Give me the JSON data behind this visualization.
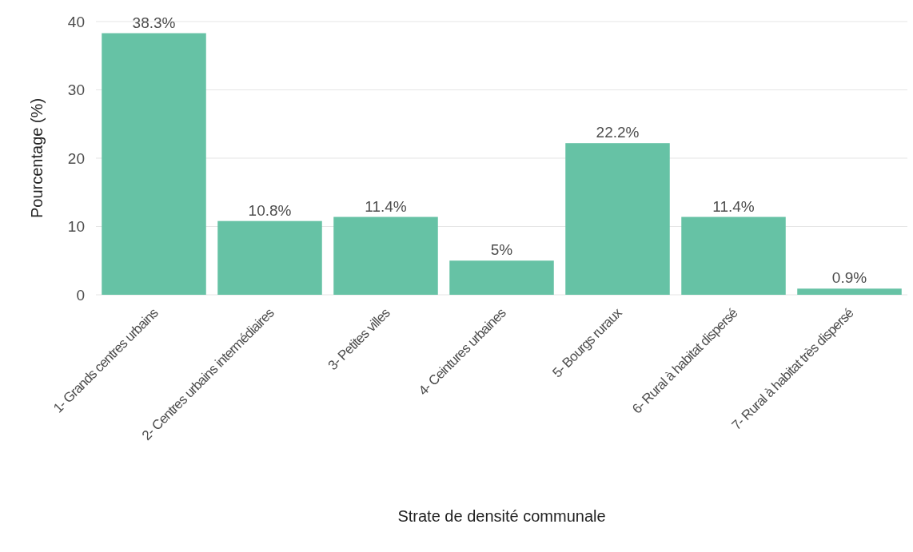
{
  "chart_data": {
    "type": "bar",
    "xlabel": "Strate de densité communale",
    "ylabel": "Pourcentage (%)",
    "categories": [
      "1- Grands centres urbains",
      "2- Centres urbains intermédiaires",
      "3- Petites villes",
      "4- Ceintures urbaines",
      "5- Bourgs ruraux",
      "6- Rural à habitat dispersé",
      "7- Rural à habitat très dispersé"
    ],
    "values": [
      38.3,
      10.8,
      11.4,
      5,
      22.2,
      11.4,
      0.9
    ],
    "value_labels": [
      "38.3%",
      "10.8%",
      "11.4%",
      "5%",
      "22.2%",
      "11.4%",
      "0.9%"
    ],
    "color": "#66c2a5",
    "ylim": [
      0,
      40
    ],
    "yticks": [
      0,
      10,
      20,
      30,
      40
    ],
    "grid": "y"
  }
}
